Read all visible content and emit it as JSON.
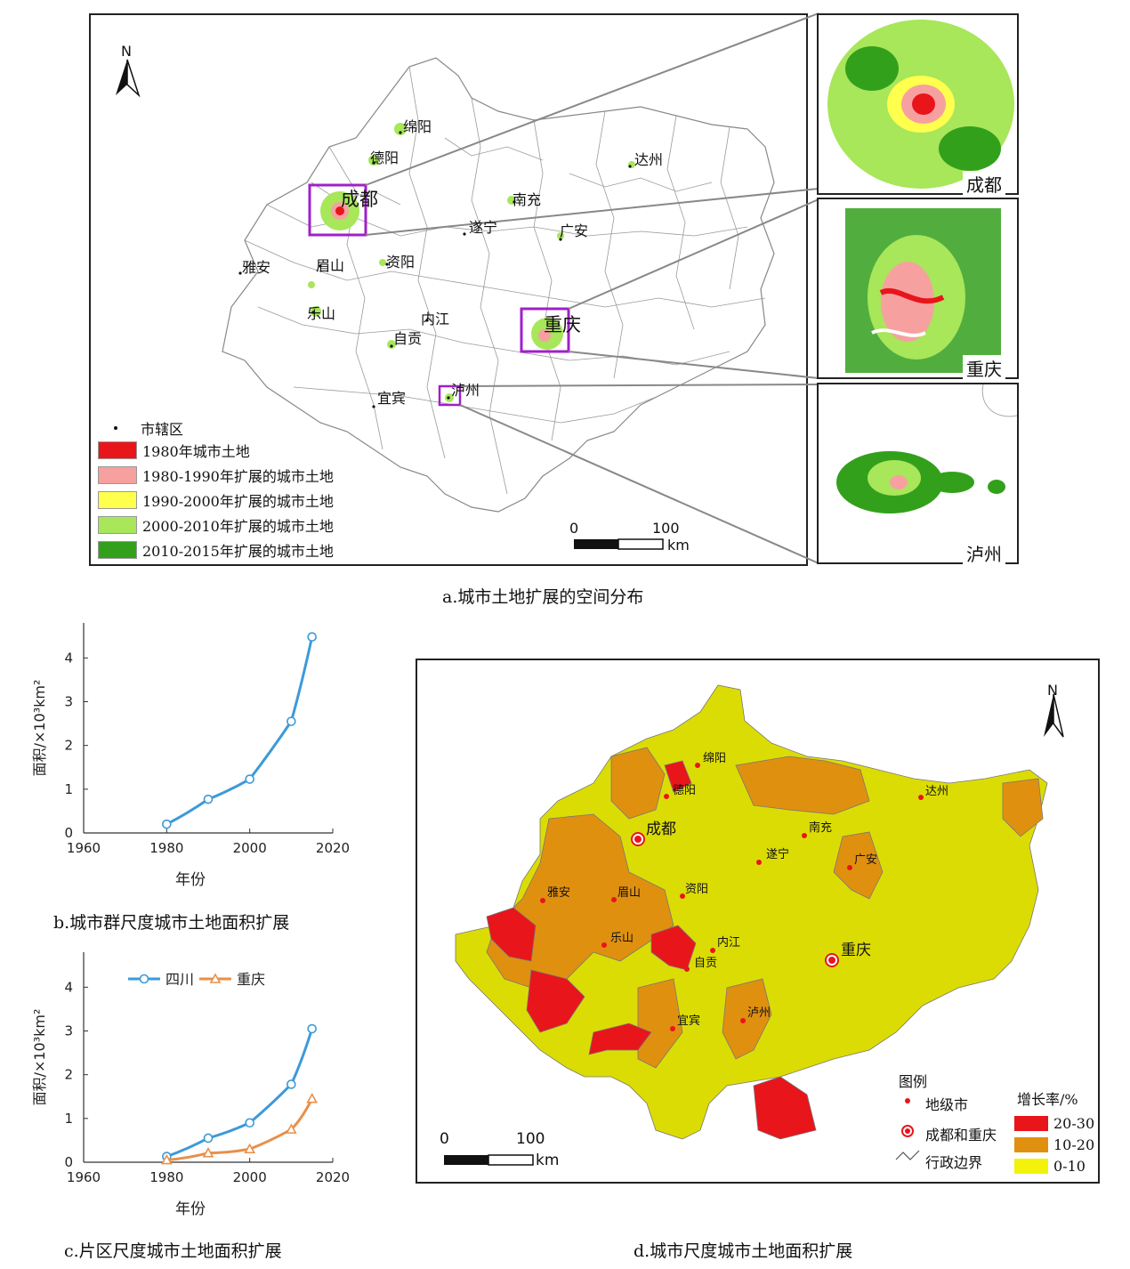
{
  "panel_a": {
    "caption": "a.城市土地扩展的空间分布",
    "north": "N",
    "cities": [
      "绵阳",
      "德阳",
      "达州",
      "成都",
      "南充",
      "遂宁",
      "广安",
      "雅安",
      "眉山",
      "资阳",
      "乐山",
      "内江",
      "重庆",
      "自贡",
      "宜宾",
      "泸州"
    ],
    "legend": {
      "point_label": "市辖区",
      "items": [
        {
          "label": "1980年城市土地",
          "color": "#e8151b"
        },
        {
          "label": "1980-1990年扩展的城市土地",
          "color": "#f7a0a0"
        },
        {
          "label": "1990-2000年扩展的城市土地",
          "color": "#ffff4d"
        },
        {
          "label": "2000-2010年扩展的城市土地",
          "color": "#a8e65a"
        },
        {
          "label": "2010-2015年扩展的城市土地",
          "color": "#33a01c"
        }
      ]
    },
    "scale": {
      "start": "0",
      "end": "100",
      "unit": "km"
    },
    "insets": [
      "成都",
      "重庆",
      "泸州"
    ]
  },
  "panel_b": {
    "caption": "b.城市群尺度城市土地面积扩展",
    "xlabel": "年份",
    "ylabel": "面积/×10³km²"
  },
  "panel_c": {
    "caption": "c.片区尺度城市土地面积扩展",
    "xlabel": "年份",
    "ylabel": "面积/×10³km²",
    "legend": [
      "四川",
      "重庆"
    ]
  },
  "panel_d": {
    "caption": "d.城市尺度城市土地面积扩展",
    "north": "N",
    "cities": [
      "绵阳",
      "德阳",
      "达州",
      "成都",
      "南充",
      "遂宁",
      "广安",
      "雅安",
      "眉山",
      "资阳",
      "乐山",
      "内江",
      "重庆",
      "自贡",
      "宜宾",
      "泸州"
    ],
    "legend_title": "图例",
    "legend_items": [
      "地级市",
      "成都和重庆",
      "行政边界"
    ],
    "rate_title": "增长率/%",
    "rate_classes": [
      {
        "label": "20-30",
        "color": "#e8151b"
      },
      {
        "label": "10-20",
        "color": "#e0900f"
      },
      {
        "label": "0-10",
        "color": "#f2f20a"
      }
    ],
    "scale": {
      "start": "0",
      "end": "100",
      "unit": "km"
    }
  },
  "chart_data": [
    {
      "type": "line",
      "title": "",
      "xlabel": "年份",
      "ylabel": "面积/×10³km²",
      "xlim": [
        1960,
        2020
      ],
      "ylim": [
        0,
        4.8
      ],
      "xticks": [
        1960,
        1980,
        2000,
        2020
      ],
      "yticks": [
        0,
        1,
        2,
        3,
        4
      ],
      "series": [
        {
          "x": [
            1980,
            1990,
            2000,
            2010,
            2015
          ],
          "values": [
            0.2,
            0.77,
            1.23,
            2.55,
            4.48
          ],
          "color": "#3d9ad8",
          "marker": "circle"
        }
      ]
    },
    {
      "type": "line",
      "title": "",
      "xlabel": "年份",
      "ylabel": "面积/×10³km²",
      "xlim": [
        1960,
        2020
      ],
      "ylim": [
        0,
        4.8
      ],
      "xticks": [
        1960,
        1980,
        2000,
        2020
      ],
      "yticks": [
        0,
        1,
        2,
        3,
        4
      ],
      "legend": "top-left",
      "series": [
        {
          "name": "四川",
          "x": [
            1980,
            1990,
            2000,
            2010,
            2015
          ],
          "values": [
            0.13,
            0.55,
            0.9,
            1.78,
            3.05
          ],
          "color": "#3d9ad8",
          "marker": "circle"
        },
        {
          "name": "重庆",
          "x": [
            1980,
            1990,
            2000,
            2010,
            2015
          ],
          "values": [
            0.05,
            0.21,
            0.3,
            0.75,
            1.45
          ],
          "color": "#e8904a",
          "marker": "triangle"
        }
      ]
    }
  ]
}
